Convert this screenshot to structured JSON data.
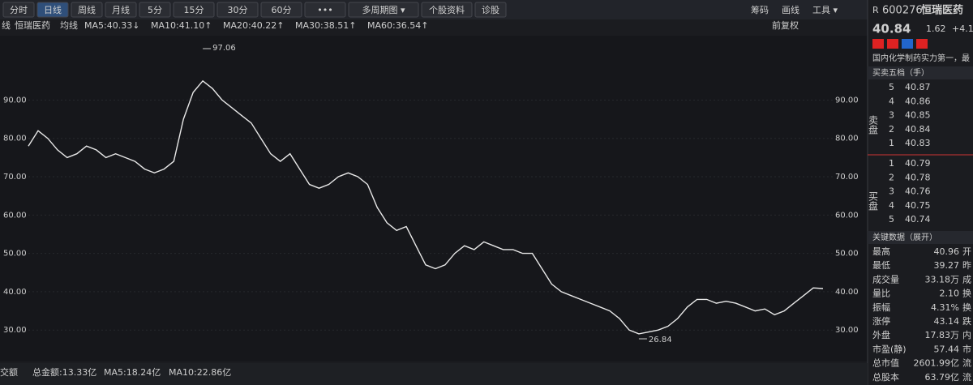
{
  "toolbar": {
    "tabs": [
      "分时",
      "日线",
      "周线",
      "月线",
      "5分",
      "15分",
      "30分",
      "60分",
      "•••",
      "多周期图 ▾",
      "个股资料",
      "诊股"
    ],
    "active": 1,
    "tools": [
      "筹码",
      "画线",
      "工具 ▾"
    ]
  },
  "indicator_bar": {
    "prefix": "线",
    "name": "恒瑞医药",
    "label": "均线",
    "ma": [
      {
        "text": "MA5:40.33↓",
        "color": "#e8e8e8"
      },
      {
        "text": "MA10:41.10↑",
        "color": "#f0c020"
      },
      {
        "text": "MA20:40.22↑",
        "color": "#e040c0"
      },
      {
        "text": "MA30:38.51↑",
        "color": "#30c060"
      },
      {
        "text": "MA60:36.54↑",
        "color": "#40a0f0"
      }
    ],
    "adjust": "前复权"
  },
  "chart_data": {
    "type": "line",
    "color": "#e8e8e8",
    "values": [
      78,
      82,
      80,
      77,
      75,
      76,
      78,
      77,
      75,
      76,
      75,
      74,
      72,
      71,
      72,
      74,
      85,
      92,
      95,
      93,
      90,
      88,
      86,
      84,
      80,
      76,
      74,
      76,
      72,
      68,
      67,
      68,
      70,
      71,
      70,
      68,
      62,
      58,
      56,
      57,
      52,
      47,
      46,
      47,
      50,
      52,
      51,
      53,
      52,
      51,
      51,
      50,
      50,
      46,
      42,
      40,
      39,
      38,
      37,
      36,
      35,
      33,
      30,
      29,
      29.5,
      30,
      31,
      33,
      36,
      38,
      38,
      37,
      37.5,
      37,
      36,
      35,
      35.5,
      34,
      35,
      37,
      39,
      41,
      40.84
    ],
    "ylim": [
      21.8,
      106.8
    ],
    "yticks": [
      {
        "value": 30,
        "label": "30.00"
      },
      {
        "value": 40,
        "label": "40.00"
      },
      {
        "value": 50,
        "label": "50.00"
      },
      {
        "value": 60,
        "label": "60.00"
      },
      {
        "value": 70,
        "label": "70.00"
      },
      {
        "value": 80,
        "label": "80.00"
      },
      {
        "value": 90,
        "label": "90.00"
      }
    ],
    "high_label": "97.06",
    "low_label": "26.84"
  },
  "volume_bar": [
    "交额",
    "总金额:13.33亿",
    "MA5:18.24亿",
    "MA10:22.86亿"
  ],
  "quote": {
    "flag": "R",
    "code": "600276",
    "name": "恒瑞医药",
    "price": "40.84",
    "change": "1.62",
    "change_pct": "+4.1",
    "description": "国内化学制药实力第一，最",
    "book_title": "买卖五档（手）",
    "sell_label": "卖盘",
    "buy_label": "买盘",
    "sell": [
      [
        "5",
        "40.87"
      ],
      [
        "4",
        "40.86"
      ],
      [
        "3",
        "40.85"
      ],
      [
        "2",
        "40.84"
      ],
      [
        "1",
        "40.83"
      ]
    ],
    "buy": [
      [
        "1",
        "40.79"
      ],
      [
        "2",
        "40.78"
      ],
      [
        "3",
        "40.76"
      ],
      [
        "4",
        "40.75"
      ],
      [
        "5",
        "40.74"
      ]
    ],
    "key_title": "关键数据（展开）",
    "key": [
      {
        "name": "最高",
        "value": "40.96",
        "tail": "开",
        "color": "#ff4d4d"
      },
      {
        "name": "最低",
        "value": "39.27",
        "tail": "昨",
        "color": "#ff4d4d"
      },
      {
        "name": "成交量",
        "value": "33.18万",
        "tail": "成",
        "color": "#4da6ff"
      },
      {
        "name": "量比",
        "value": "2.10",
        "tail": "换",
        "color": "#4da6ff"
      },
      {
        "name": "振幅",
        "value": "4.31%",
        "tail": "换",
        "color": "#4da6ff"
      },
      {
        "name": "涨停",
        "value": "43.14",
        "tail": "跌",
        "color": "#ff4d4d"
      },
      {
        "name": "外盘",
        "value": "17.83万",
        "tail": "内",
        "color": "#ff4d4d"
      },
      {
        "name": "市盈(静)",
        "value": "57.44",
        "tail": "市",
        "color": "#4da6ff"
      },
      {
        "name": "总市值",
        "value": "2601.99亿",
        "tail": "流",
        "color": "#4da6ff"
      },
      {
        "name": "总股本",
        "value": "63.79亿",
        "tail": "流",
        "color": "#4da6ff"
      }
    ]
  }
}
